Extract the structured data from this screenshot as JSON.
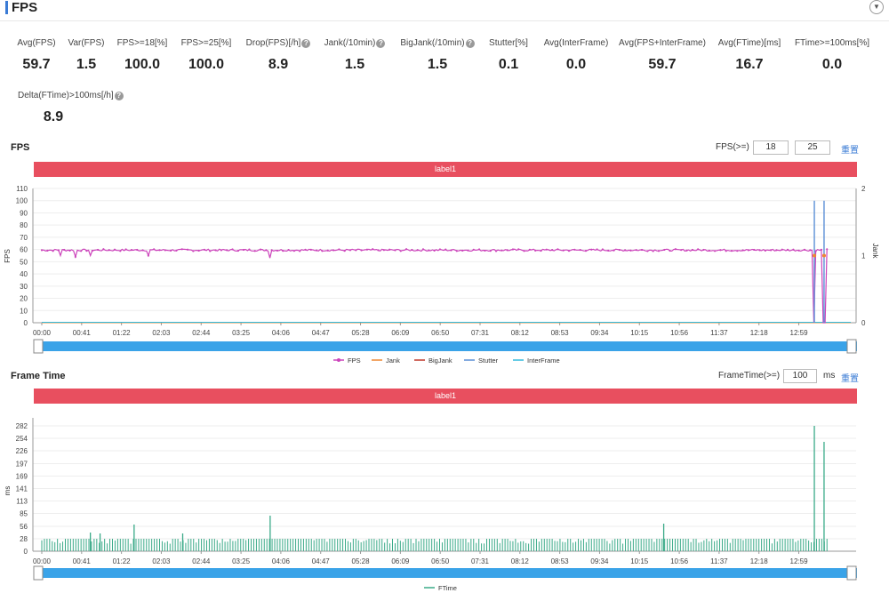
{
  "header": {
    "title": "FPS",
    "collapse_icon": "chevron-down-icon"
  },
  "metrics": [
    {
      "label": "Avg(FPS)",
      "value": "59.7",
      "help": false
    },
    {
      "label": "Var(FPS)",
      "value": "1.5",
      "help": false
    },
    {
      "label": "FPS>=18[%]",
      "value": "100.0",
      "help": false
    },
    {
      "label": "FPS>=25[%]",
      "value": "100.0",
      "help": false
    },
    {
      "label": "Drop(FPS)[/h]",
      "value": "8.9",
      "help": true
    },
    {
      "label": "Jank(/10min)",
      "value": "1.5",
      "help": true
    },
    {
      "label": "BigJank(/10min)",
      "value": "1.5",
      "help": true
    },
    {
      "label": "Stutter[%]",
      "value": "0.1",
      "help": false
    },
    {
      "label": "Avg(InterFrame)",
      "value": "0.0",
      "help": false
    },
    {
      "label": "Avg(FPS+InterFrame)",
      "value": "59.7",
      "help": false
    },
    {
      "label": "Avg(FTime)[ms]",
      "value": "16.7",
      "help": false
    },
    {
      "label": "FTime>=100ms[%]",
      "value": "0.0",
      "help": false
    },
    {
      "label": "Delta(FTime)>100ms[/h]",
      "value": "8.9",
      "help": true
    }
  ],
  "help_glyph": "?",
  "fps_section": {
    "title": "FPS",
    "threshold_label": "FPS(>=)",
    "threshold_1": "18",
    "threshold_2": "25",
    "reset_label": "重置",
    "label_bar": "label1"
  },
  "frametime_section": {
    "title": "Frame Time",
    "threshold_label": "FrameTime(>=)",
    "threshold": "100",
    "unit": "ms",
    "reset_label": "重置",
    "label_bar": "label1"
  },
  "colors": {
    "fps": "#cc44bb",
    "jank": "#ee8833",
    "bigjank": "#c0392b",
    "stutter": "#5b8fd6",
    "interframe": "#33bbdd",
    "ftime": "#3aaa88",
    "label_bar": "#e84f5f",
    "slider": "#3aa3e8"
  },
  "chart_data": [
    {
      "type": "line",
      "title": "",
      "xlabel": "",
      "ylabel": "FPS",
      "y2label": "Jank",
      "x_ticks": [
        "00:00",
        "00:41",
        "01:22",
        "02:03",
        "02:44",
        "03:25",
        "04:06",
        "04:47",
        "05:28",
        "06:09",
        "06:50",
        "07:31",
        "08:12",
        "08:53",
        "09:34",
        "10:15",
        "10:56",
        "11:37",
        "12:18",
        "12:59"
      ],
      "y_ticks": [
        0,
        10,
        20,
        30,
        40,
        50,
        60,
        70,
        80,
        90,
        100,
        110
      ],
      "y2_ticks": [
        0,
        1,
        2
      ],
      "ylim": [
        0,
        110
      ],
      "y2lim": [
        0,
        2
      ],
      "legend_position": "bottom",
      "series": [
        {
          "name": "FPS",
          "axis": "left",
          "baseline": 59.5,
          "dips": [
            {
              "t": "00:20",
              "v": 55
            },
            {
              "t": "00:35",
              "v": 54
            },
            {
              "t": "00:50",
              "v": 55
            },
            {
              "t": "01:50",
              "v": 55
            },
            {
              "t": "03:55",
              "v": 53
            },
            {
              "t": "13:15",
              "v": 0
            },
            {
              "t": "13:25",
              "v": 0
            }
          ]
        },
        {
          "name": "Jank",
          "axis": "right",
          "values": "0 except 1 near 13:15 and 13:25"
        },
        {
          "name": "BigJank",
          "axis": "right",
          "values": "0 except 1 near 13:15 and 13:25"
        },
        {
          "name": "Stutter",
          "axis": "left",
          "spikes": [
            {
              "t": "13:15",
              "v": 100
            },
            {
              "t": "13:25",
              "v": 100
            }
          ]
        },
        {
          "name": "InterFrame",
          "axis": "left",
          "values": "0"
        }
      ]
    },
    {
      "type": "bar",
      "title": "",
      "xlabel": "",
      "ylabel": "ms",
      "x_ticks": [
        "00:00",
        "00:41",
        "01:22",
        "02:03",
        "02:44",
        "03:25",
        "04:06",
        "04:47",
        "05:28",
        "06:09",
        "06:50",
        "07:31",
        "08:12",
        "08:53",
        "09:34",
        "10:15",
        "10:56",
        "11:37",
        "12:18",
        "12:59"
      ],
      "y_ticks": [
        0,
        28,
        56,
        85,
        113,
        141,
        169,
        197,
        226,
        254,
        282
      ],
      "ylim": [
        0,
        300
      ],
      "legend_position": "bottom",
      "series": [
        {
          "name": "FTime",
          "baseline": 16.7,
          "typical_peak": 28,
          "spikes": [
            {
              "t": "00:50",
              "v": 42
            },
            {
              "t": "01:00",
              "v": 40
            },
            {
              "t": "01:35",
              "v": 60
            },
            {
              "t": "02:25",
              "v": 40
            },
            {
              "t": "03:55",
              "v": 80
            },
            {
              "t": "10:40",
              "v": 62
            },
            {
              "t": "13:15",
              "v": 282
            },
            {
              "t": "13:25",
              "v": 246
            }
          ]
        }
      ]
    }
  ]
}
